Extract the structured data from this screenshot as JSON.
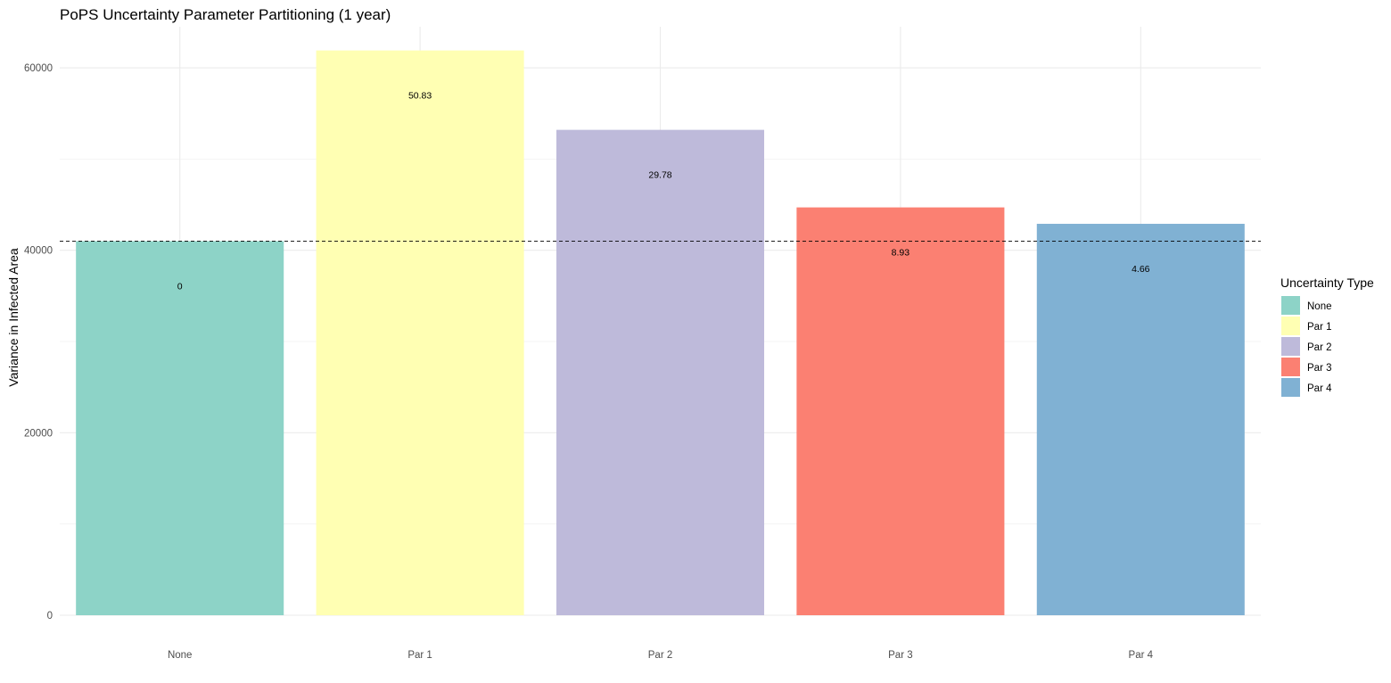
{
  "chart_data": {
    "type": "bar",
    "title": "PoPS Uncertainty Parameter Partitioning (1 year)",
    "xlabel": "",
    "ylabel": "Variance in Infected Area",
    "categories": [
      "None",
      "Par 1",
      "Par 2",
      "Par 3",
      "Par 4"
    ],
    "values": [
      41000,
      61900,
      53200,
      44700,
      42900
    ],
    "bar_labels": [
      "0",
      "50.83",
      "29.78",
      "8.93",
      "4.66"
    ],
    "colors": [
      "#8DD3C7",
      "#FFFFB3",
      "#BEBADA",
      "#FB8072",
      "#80B1D3"
    ],
    "ylim": [
      0,
      64500
    ],
    "yticks": [
      0,
      20000,
      40000,
      60000
    ],
    "ytick_labels": [
      "0",
      "20000",
      "40000",
      "60000"
    ],
    "reference_line": {
      "y": 41000,
      "style": "dashed"
    },
    "grid": true,
    "legend": {
      "title": "Uncertainty Type",
      "entries": [
        "None",
        "Par 1",
        "Par 2",
        "Par 3",
        "Par 4"
      ],
      "placement": "right"
    }
  }
}
